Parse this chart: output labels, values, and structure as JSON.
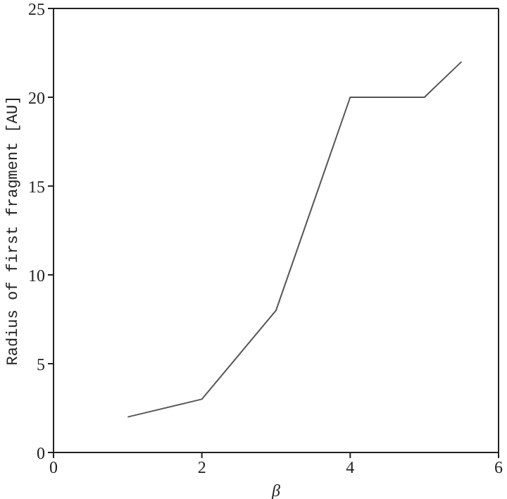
{
  "chart_data": {
    "type": "line",
    "xlabel": "β",
    "ylabel": "Radius of first fragment [AU]",
    "x": [
      1,
      2,
      3,
      4,
      5,
      5.5
    ],
    "series": [
      {
        "color": "#555555",
        "values": [
          2,
          3,
          8,
          20,
          20,
          22
        ]
      }
    ],
    "xlim": [
      0,
      6
    ],
    "xticks": [
      0,
      2,
      4,
      6
    ],
    "ylim": [
      0,
      25
    ],
    "yticks": [
      0,
      5,
      10,
      15,
      20,
      25
    ],
    "line_style": "solid"
  }
}
